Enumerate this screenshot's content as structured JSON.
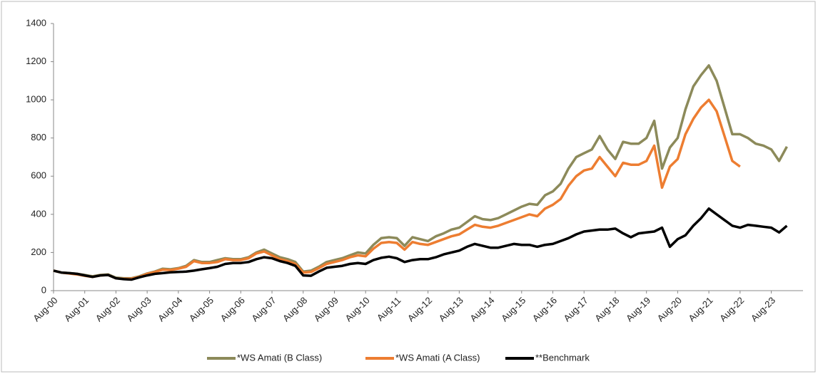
{
  "chart_data": {
    "type": "line",
    "categories": [
      "Aug-00",
      null,
      null,
      null,
      "Aug-01",
      null,
      null,
      null,
      "Aug-02",
      null,
      null,
      null,
      "Aug-03",
      null,
      null,
      null,
      "Aug-04",
      null,
      null,
      null,
      "Aug-05",
      null,
      null,
      null,
      "Aug-06",
      null,
      null,
      null,
      "Aug-07",
      null,
      null,
      null,
      "Aug-08",
      null,
      null,
      null,
      "Aug-09",
      null,
      null,
      null,
      "Aug-10",
      null,
      null,
      null,
      "Aug-11",
      null,
      null,
      null,
      "Aug-12",
      null,
      null,
      null,
      "Aug-13",
      null,
      null,
      null,
      "Aug-14",
      null,
      null,
      null,
      "Aug-15",
      null,
      null,
      null,
      "Aug-16",
      null,
      null,
      null,
      "Aug-17",
      null,
      null,
      null,
      "Aug-18",
      null,
      null,
      null,
      "Aug-19",
      null,
      null,
      null,
      "Aug-20",
      null,
      null,
      null,
      "Aug-21",
      null,
      null,
      null,
      "Aug-22",
      null,
      null,
      null,
      "Aug-23",
      null,
      null
    ],
    "series": [
      {
        "name": "*WS Amati (B Class)",
        "color": "#8c8a5a",
        "values": [
          105,
          95,
          92,
          88,
          82,
          75,
          82,
          85,
          68,
          65,
          65,
          75,
          90,
          100,
          115,
          112,
          118,
          130,
          160,
          150,
          150,
          160,
          170,
          165,
          165,
          175,
          200,
          215,
          195,
          175,
          165,
          150,
          100,
          105,
          125,
          150,
          160,
          170,
          185,
          200,
          195,
          240,
          275,
          280,
          275,
          235,
          280,
          270,
          260,
          285,
          300,
          320,
          330,
          360,
          390,
          375,
          370,
          380,
          400,
          420,
          440,
          455,
          450,
          500,
          520,
          560,
          640,
          700,
          720,
          740,
          810,
          740,
          690,
          780,
          770,
          770,
          800,
          890,
          640,
          750,
          800,
          950,
          1070,
          1130,
          1180,
          1100,
          960,
          820,
          820,
          800,
          770,
          760,
          740,
          680,
          755
        ]
      },
      {
        "name": "*WS Amati (A Class)",
        "color": "#ed7d31",
        "values": [
          105,
          95,
          90,
          85,
          78,
          72,
          80,
          82,
          65,
          62,
          63,
          72,
          88,
          98,
          110,
          108,
          115,
          125,
          155,
          145,
          145,
          150,
          165,
          160,
          160,
          170,
          195,
          205,
          185,
          165,
          155,
          140,
          95,
          98,
          118,
          140,
          150,
          160,
          175,
          185,
          180,
          220,
          250,
          255,
          250,
          215,
          255,
          245,
          240,
          255,
          270,
          285,
          295,
          320,
          345,
          335,
          330,
          340,
          355,
          370,
          385,
          400,
          390,
          430,
          450,
          480,
          550,
          600,
          630,
          640,
          700,
          650,
          600,
          670,
          660,
          660,
          680,
          760,
          540,
          650,
          690,
          820,
          900,
          960,
          1000,
          940,
          810,
          680,
          650,
          null,
          null,
          null,
          null,
          null,
          null
        ]
      },
      {
        "name": "**Benchmark",
        "color": "#000000",
        "values": [
          105,
          95,
          92,
          88,
          80,
          72,
          80,
          82,
          65,
          60,
          58,
          70,
          80,
          88,
          92,
          96,
          98,
          100,
          105,
          112,
          118,
          125,
          140,
          145,
          145,
          150,
          165,
          175,
          170,
          155,
          145,
          130,
          80,
          78,
          100,
          120,
          125,
          130,
          140,
          145,
          140,
          160,
          172,
          178,
          170,
          150,
          160,
          165,
          165,
          175,
          190,
          200,
          210,
          230,
          245,
          235,
          225,
          225,
          235,
          245,
          240,
          240,
          230,
          240,
          245,
          260,
          275,
          295,
          310,
          315,
          320,
          320,
          325,
          300,
          280,
          300,
          305,
          310,
          330,
          230,
          270,
          290,
          340,
          380,
          430,
          400,
          370,
          340,
          330,
          345,
          340,
          335,
          330,
          305,
          340
        ]
      }
    ],
    "ylim": [
      0,
      1400
    ],
    "yticks": [
      0,
      200,
      400,
      600,
      800,
      1000,
      1200,
      1400
    ],
    "legend": "bottom"
  }
}
